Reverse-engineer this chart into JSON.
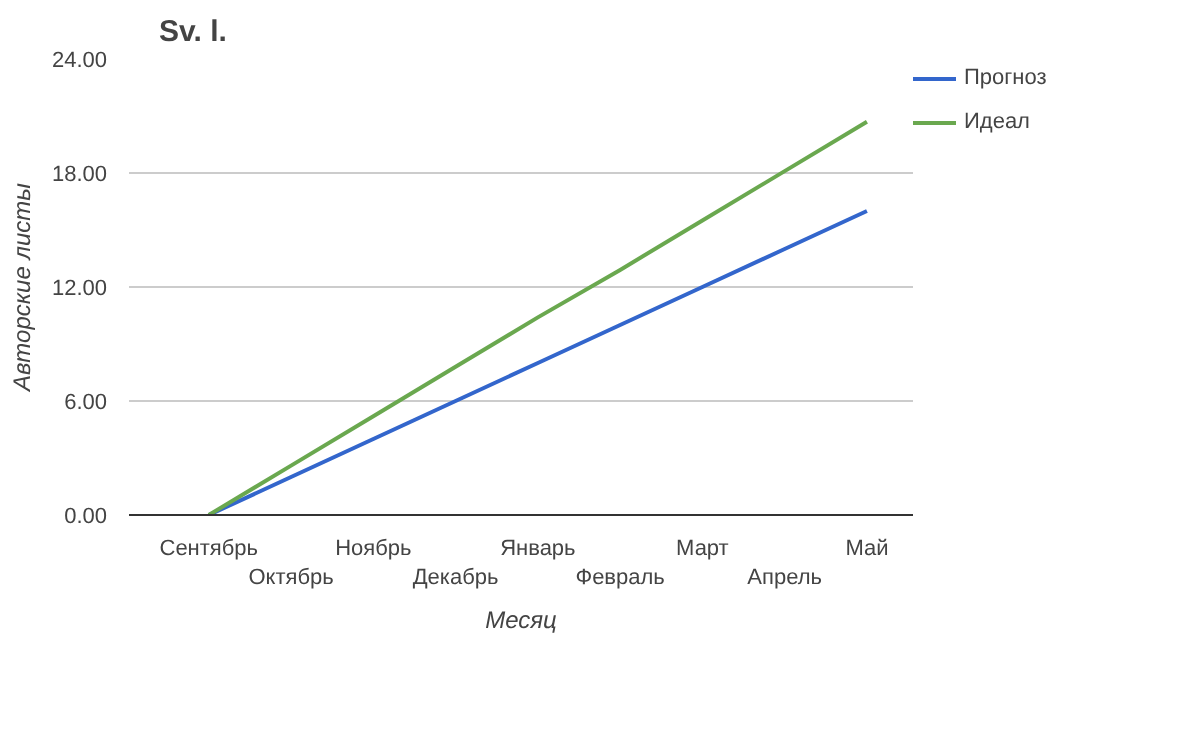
{
  "chart_data": {
    "type": "line",
    "title": "Sv. l.",
    "xlabel": "Месяц",
    "ylabel": "Авторские листы",
    "categories": [
      "Сентябрь",
      "Октябрь",
      "Ноябрь",
      "Декабрь",
      "Январь",
      "Февраль",
      "Март",
      "Апрель",
      "Май"
    ],
    "series": [
      {
        "name": "Прогноз",
        "color": "#3366cc",
        "values": [
          0,
          2,
          4,
          6,
          8,
          10,
          12,
          14,
          16
        ]
      },
      {
        "name": "Идеал",
        "color": "#6aa84f",
        "values": [
          0,
          2.6,
          5.2,
          7.8,
          10.4,
          12.9,
          15.5,
          18.1,
          20.7
        ]
      }
    ],
    "ylim": [
      0,
      24
    ],
    "yticks": [
      {
        "value": 0,
        "label": "0.00"
      },
      {
        "value": 6,
        "label": "6.00"
      },
      {
        "value": 12,
        "label": "12.00"
      },
      {
        "value": 18,
        "label": "18.00"
      },
      {
        "value": 24,
        "label": "24.00"
      }
    ],
    "grid": "y",
    "legend": "right",
    "marker": "none",
    "line_style": "solid"
  }
}
